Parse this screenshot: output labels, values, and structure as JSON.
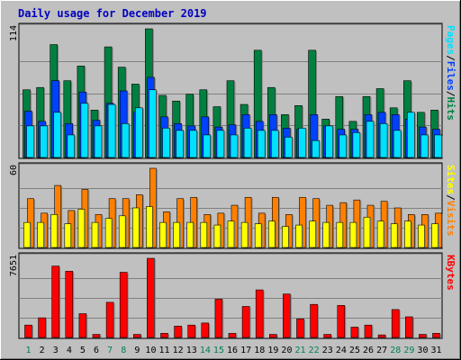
{
  "chart_data": [
    {
      "type": "bar",
      "title": "Daily usage for December 2019",
      "panel": "pages-files-hits",
      "categories": [
        "1",
        "2",
        "3",
        "4",
        "5",
        "6",
        "7",
        "8",
        "9",
        "10",
        "11",
        "12",
        "13",
        "14",
        "15",
        "16",
        "17",
        "18",
        "19",
        "20",
        "21",
        "22",
        "23",
        "24",
        "25",
        "26",
        "27",
        "28",
        "29",
        "30",
        "31"
      ],
      "weekend_days": [
        "1",
        "7",
        "8",
        "14",
        "15",
        "21",
        "22",
        "28",
        "29"
      ],
      "ymax_label": "114",
      "ylim": [
        0,
        114
      ],
      "ylabel_parts": [
        "Pages",
        "/",
        "Files",
        "/",
        "Hits"
      ],
      "series": [
        {
          "name": "Hits",
          "color": "#008040",
          "values": [
            60,
            62,
            100,
            68,
            81,
            42,
            98,
            80,
            65,
            114,
            55,
            50,
            56,
            60,
            45,
            68,
            47,
            95,
            62,
            38,
            46,
            95,
            34,
            54,
            32,
            54,
            61,
            44,
            68,
            40,
            42
          ]
        },
        {
          "name": "Files",
          "color": "#0040ff",
          "values": [
            41,
            32,
            68,
            30,
            58,
            33,
            48,
            59,
            40,
            71,
            36,
            30,
            28,
            36,
            27,
            29,
            38,
            32,
            38,
            26,
            25,
            38,
            28,
            25,
            25,
            38,
            40,
            38,
            34,
            27,
            25
          ]
        },
        {
          "name": "Pages",
          "color": "#00e0ff",
          "values": [
            28,
            28,
            40,
            20,
            48,
            28,
            47,
            30,
            44,
            60,
            26,
            24,
            24,
            20,
            24,
            20,
            26,
            24,
            24,
            18,
            26,
            15,
            28,
            20,
            22,
            32,
            30,
            24,
            40,
            20,
            20
          ]
        }
      ]
    },
    {
      "type": "bar",
      "panel": "visits-sites",
      "categories": [
        "1",
        "2",
        "3",
        "4",
        "5",
        "6",
        "7",
        "8",
        "9",
        "10",
        "11",
        "12",
        "13",
        "14",
        "15",
        "16",
        "17",
        "18",
        "19",
        "20",
        "21",
        "22",
        "23",
        "24",
        "25",
        "26",
        "27",
        "28",
        "29",
        "30",
        "31"
      ],
      "ymax_label": "60",
      "ylim": [
        0,
        60
      ],
      "ylabel_parts": [
        "Sites",
        "/",
        "Visits"
      ],
      "series": [
        {
          "name": "Visits",
          "color": "#ff8000",
          "values": [
            37,
            26,
            47,
            28,
            44,
            25,
            37,
            37,
            40,
            60,
            27,
            37,
            38,
            25,
            26,
            32,
            38,
            26,
            38,
            25,
            38,
            37,
            32,
            34,
            36,
            32,
            35,
            30,
            25,
            25,
            26
          ]
        },
        {
          "name": "Sites",
          "color": "#ffff00",
          "values": [
            19,
            19,
            25,
            18,
            29,
            19,
            22,
            24,
            30,
            31,
            19,
            19,
            19,
            19,
            17,
            20,
            19,
            18,
            20,
            16,
            17,
            20,
            19,
            19,
            19,
            23,
            20,
            18,
            20,
            17,
            18
          ]
        }
      ]
    },
    {
      "type": "bar",
      "panel": "kbytes",
      "categories": [
        "1",
        "2",
        "3",
        "4",
        "5",
        "6",
        "7",
        "8",
        "9",
        "10",
        "11",
        "12",
        "13",
        "14",
        "15",
        "16",
        "17",
        "18",
        "19",
        "20",
        "21",
        "22",
        "23",
        "24",
        "25",
        "26",
        "27",
        "28",
        "29",
        "30",
        "31"
      ],
      "ymax_label": "7651",
      "ylim": [
        0,
        7651
      ],
      "ylabel_parts": [
        "KBytes"
      ],
      "series": [
        {
          "name": "KBytes",
          "color": "#ff0000",
          "values": [
            1200,
            1900,
            6900,
            6400,
            2300,
            300,
            3400,
            6300,
            300,
            7651,
            400,
            1100,
            1200,
            1400,
            3700,
            400,
            3000,
            4600,
            300,
            4200,
            1800,
            3200,
            300,
            3100,
            1000,
            1200,
            250,
            2700,
            2000,
            300,
            400
          ]
        }
      ]
    }
  ]
}
